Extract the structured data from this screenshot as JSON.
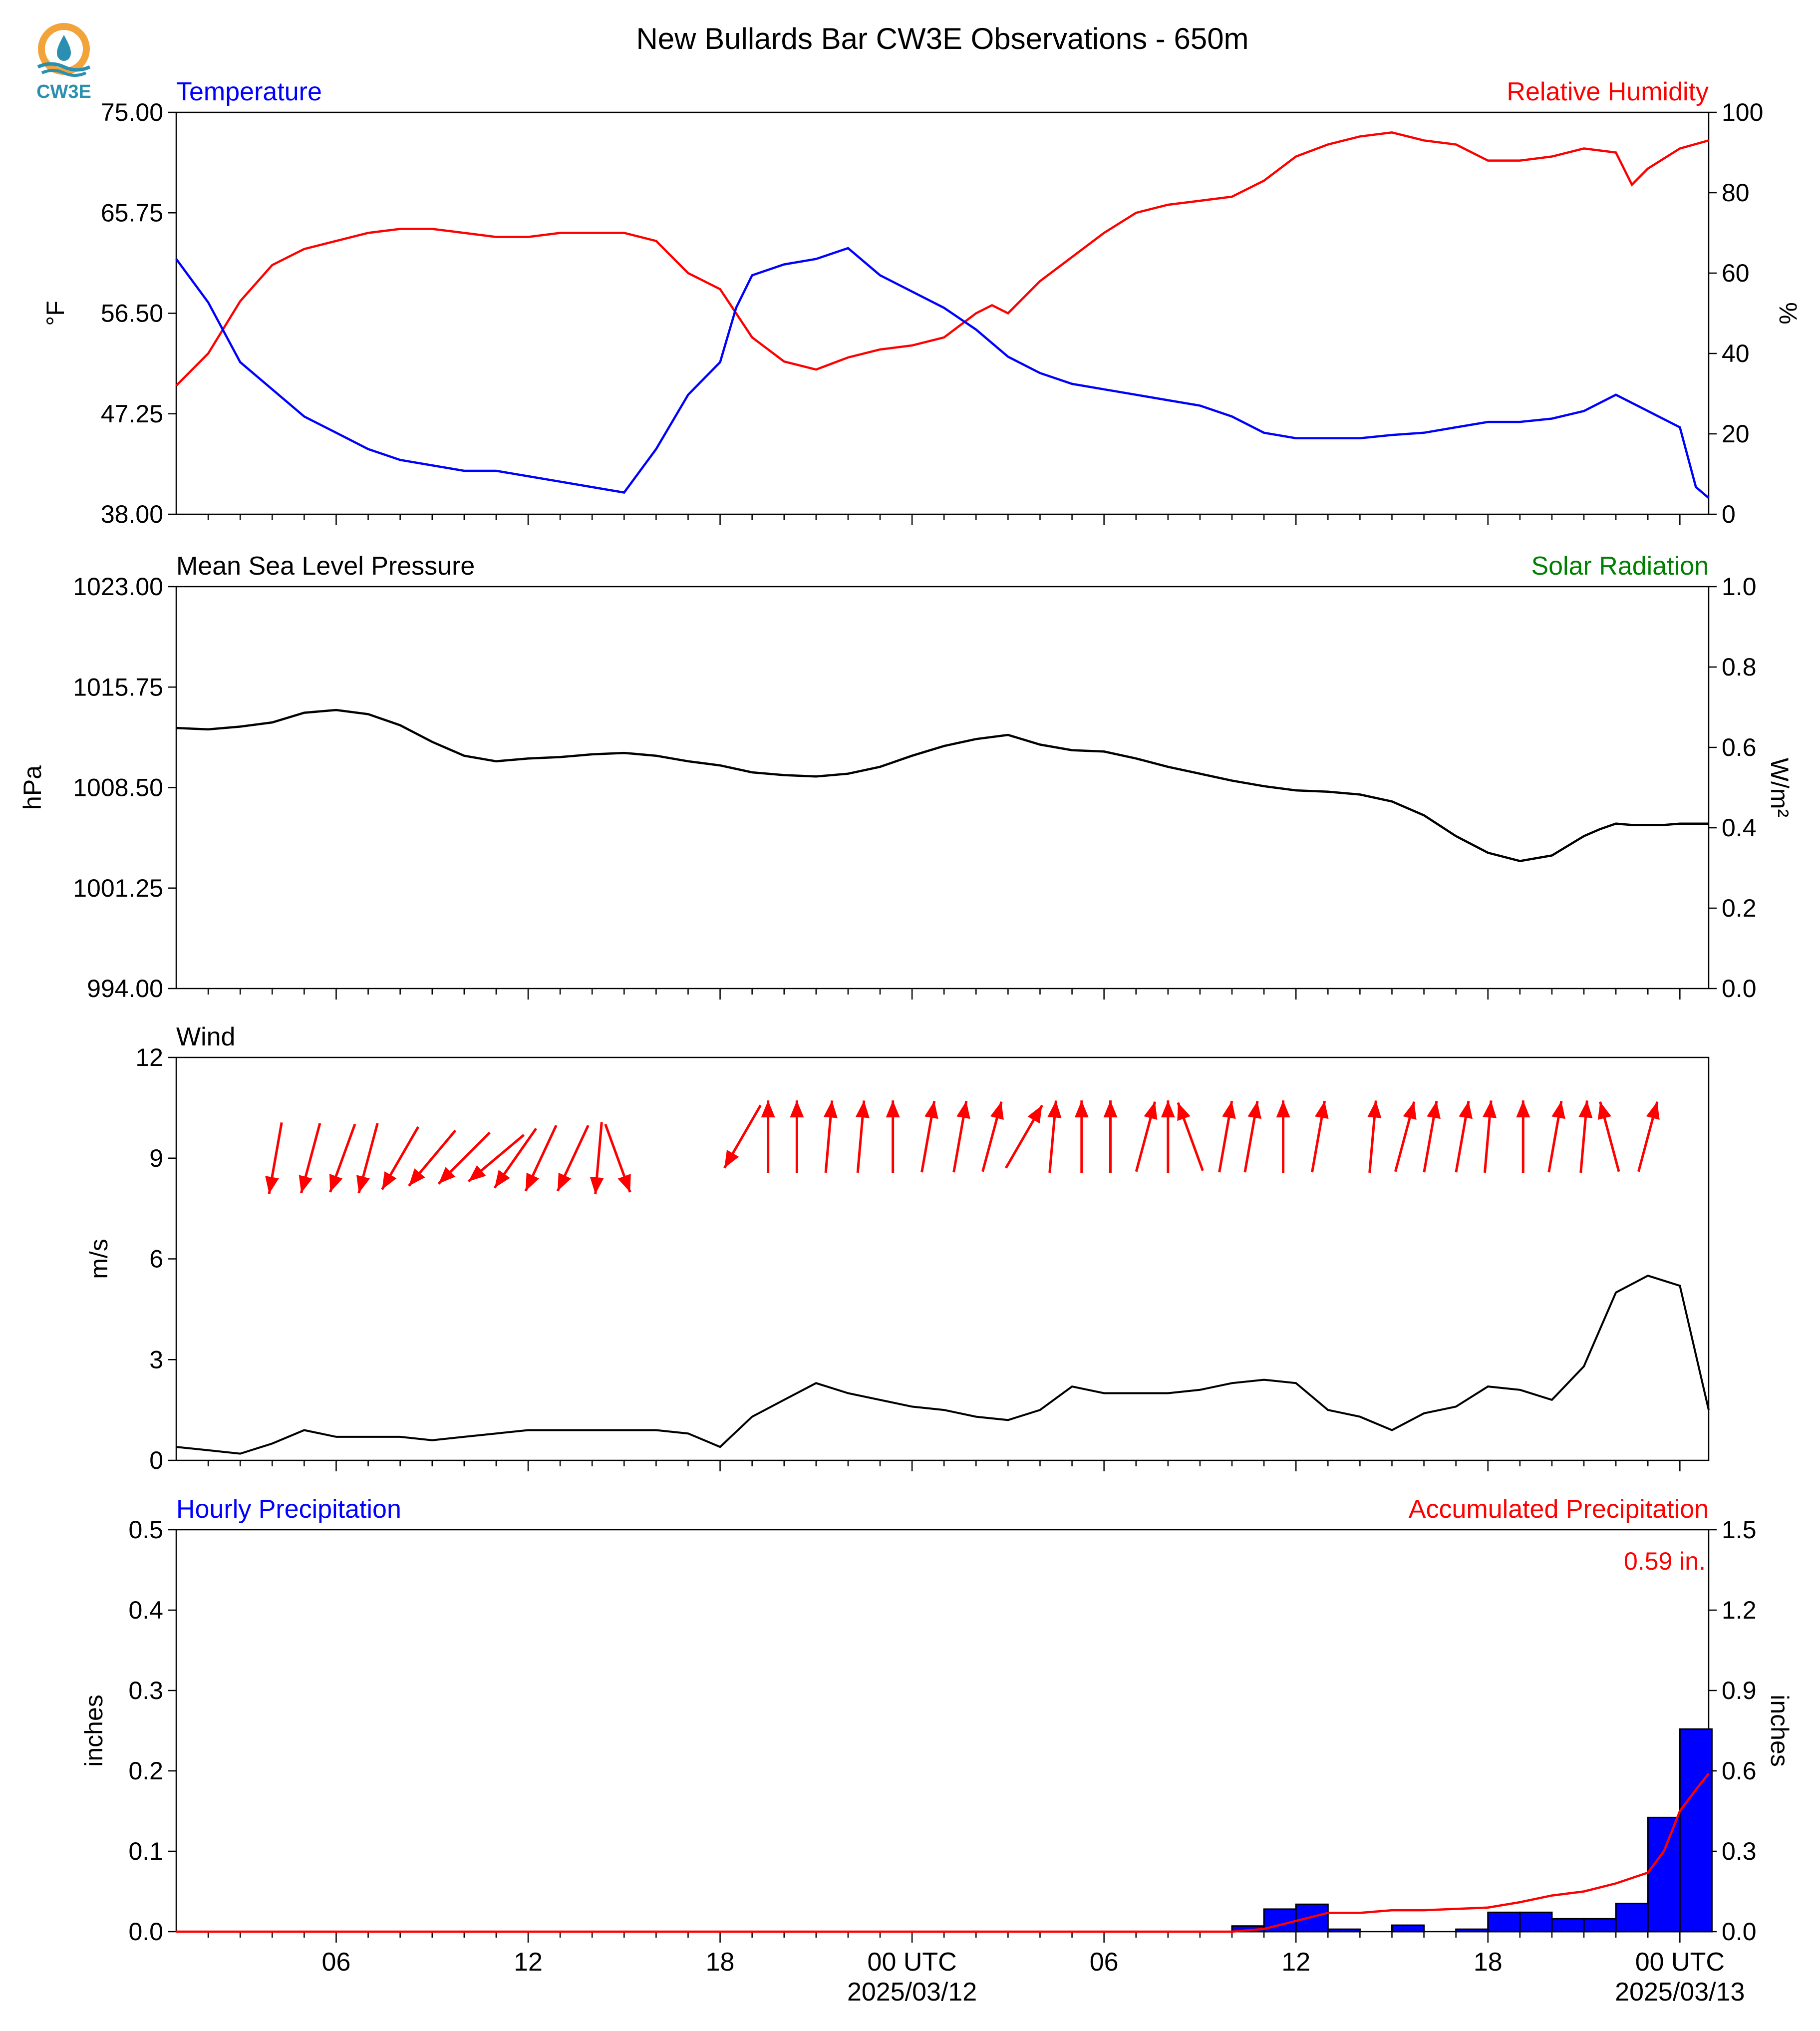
{
  "figure": {
    "title": "New Bullards Bar CW3E Observations - 650m",
    "logo_text": "CW3E"
  },
  "colors": {
    "temperature": "#0000ff",
    "humidity": "#ff0000",
    "solar": "#008000",
    "pressure": "#000000",
    "wind": "#000000",
    "wind_arrow": "#ff0000",
    "precip_bar": "#0000ff",
    "precip_accum": "#ff0000",
    "logo_orange": "#f2a33a",
    "logo_teal": "#2a8fb0"
  },
  "x_axis": {
    "start_hour": 1,
    "end_hour": 48.9,
    "major_ticks": [
      {
        "hour": 6,
        "label": "06",
        "sub": ""
      },
      {
        "hour": 12,
        "label": "12",
        "sub": ""
      },
      {
        "hour": 18,
        "label": "18",
        "sub": ""
      },
      {
        "hour": 24,
        "label": "00 UTC",
        "sub": "2025/03/12"
      },
      {
        "hour": 30,
        "label": "06",
        "sub": ""
      },
      {
        "hour": 36,
        "label": "12",
        "sub": ""
      },
      {
        "hour": 42,
        "label": "18",
        "sub": ""
      },
      {
        "hour": 48,
        "label": "00 UTC",
        "sub": "2025/03/13"
      }
    ]
  },
  "chart_data": [
    {
      "type": "line",
      "panel": "temperature_humidity",
      "left_label": "Temperature",
      "right_label": "Relative Humidity",
      "ylabel": "°F",
      "y2label": "%",
      "ylim": [
        38.0,
        75.0
      ],
      "y2lim": [
        0,
        100
      ],
      "yticks": [
        "75.00",
        "65.75",
        "56.50",
        "47.25",
        "38.00"
      ],
      "y2ticks": [
        "100",
        "80",
        "60",
        "40",
        "20",
        "0"
      ],
      "series": [
        {
          "name": "Temperature",
          "axis": "left",
          "x": [
            1,
            2,
            3,
            4,
            5,
            6,
            7,
            8,
            9,
            10,
            11,
            12,
            13,
            14,
            15,
            16,
            17,
            18,
            18.5,
            19,
            20,
            21,
            22,
            23,
            24,
            25,
            26,
            27,
            28,
            29,
            30,
            31,
            32,
            33,
            34,
            35,
            36,
            37,
            38,
            39,
            40,
            41,
            42,
            43,
            44,
            45,
            46,
            47,
            48,
            48.5,
            48.9
          ],
          "y": [
            61.5,
            57.5,
            52.0,
            49.5,
            47.0,
            45.5,
            44.0,
            43.0,
            42.5,
            42.0,
            42.0,
            41.5,
            41.0,
            40.5,
            40.0,
            44.0,
            49.0,
            52.0,
            57.0,
            60.0,
            61.0,
            61.5,
            62.5,
            60.0,
            58.5,
            57.0,
            55.0,
            52.5,
            51.0,
            50.0,
            49.5,
            49.0,
            48.5,
            48.0,
            47.0,
            45.5,
            45.0,
            45.0,
            45.0,
            45.3,
            45.5,
            46.0,
            46.5,
            46.5,
            46.8,
            47.5,
            49.0,
            47.5,
            46.0,
            40.5,
            39.5
          ]
        },
        {
          "name": "Relative Humidity",
          "axis": "right",
          "x": [
            1,
            2,
            3,
            4,
            5,
            6,
            7,
            8,
            9,
            10,
            11,
            12,
            13,
            14,
            15,
            16,
            17,
            18,
            19,
            20,
            21,
            22,
            23,
            24,
            25,
            26,
            26.5,
            27,
            28,
            29,
            30,
            31,
            32,
            33,
            34,
            35,
            36,
            37,
            38,
            39,
            40,
            41,
            42,
            43,
            44,
            45,
            46,
            46.5,
            47,
            48,
            48.9
          ],
          "y": [
            32,
            40,
            53,
            62,
            66,
            68,
            70,
            71,
            71,
            70,
            69,
            69,
            70,
            70,
            70,
            68,
            60,
            56,
            44,
            38,
            36,
            39,
            41,
            42,
            44,
            50,
            52,
            50,
            58,
            64,
            70,
            75,
            77,
            78,
            79,
            83,
            89,
            92,
            94,
            95,
            93,
            92,
            88,
            88,
            89,
            91,
            90,
            82,
            86,
            91,
            93
          ]
        }
      ]
    },
    {
      "type": "line",
      "panel": "pressure_solar",
      "left_label": "Mean Sea Level Pressure",
      "right_label": "Solar Radiation",
      "ylabel": "hPa",
      "y2label": "W/m²",
      "ylim": [
        994.0,
        1023.0
      ],
      "y2lim": [
        0.0,
        1.0
      ],
      "yticks": [
        "1023.00",
        "1015.75",
        "1008.50",
        "1001.25",
        "994.00"
      ],
      "y2ticks": [
        "1.0",
        "0.8",
        "0.6",
        "0.4",
        "0.2",
        "0.0"
      ],
      "series": [
        {
          "name": "Mean Sea Level Pressure",
          "axis": "left",
          "x": [
            1,
            2,
            3,
            4,
            5,
            6,
            7,
            8,
            9,
            10,
            11,
            12,
            13,
            14,
            15,
            16,
            17,
            18,
            19,
            20,
            21,
            22,
            23,
            24,
            25,
            26,
            27,
            28,
            29,
            30,
            31,
            32,
            33,
            34,
            35,
            36,
            37,
            38,
            39,
            40,
            41,
            42,
            43,
            44,
            45,
            45.5,
            46,
            46.5,
            47,
            47.5,
            48,
            48.5,
            48.9
          ],
          "y": [
            1012.8,
            1012.7,
            1012.9,
            1013.2,
            1013.9,
            1014.1,
            1013.8,
            1013.0,
            1011.8,
            1010.8,
            1010.4,
            1010.6,
            1010.7,
            1010.9,
            1011.0,
            1010.8,
            1010.4,
            1010.1,
            1009.6,
            1009.4,
            1009.3,
            1009.5,
            1010.0,
            1010.8,
            1011.5,
            1012.0,
            1012.3,
            1011.6,
            1011.2,
            1011.1,
            1010.6,
            1010.0,
            1009.5,
            1009.0,
            1008.6,
            1008.3,
            1008.2,
            1008.0,
            1007.5,
            1006.5,
            1005.0,
            1003.8,
            1003.2,
            1003.6,
            1005.0,
            1005.5,
            1005.9,
            1005.8,
            1005.8,
            1005.8,
            1005.9,
            1005.9,
            1005.9
          ]
        },
        {
          "name": "Solar Radiation",
          "axis": "right",
          "x": [],
          "y": []
        }
      ]
    },
    {
      "type": "line",
      "panel": "wind",
      "left_label": "Wind",
      "ylabel": "m/s",
      "ylim": [
        0,
        12
      ],
      "yticks": [
        "12",
        "9",
        "6",
        "3",
        "0"
      ],
      "series": [
        {
          "name": "Wind",
          "x": [
            1,
            2,
            3,
            4,
            5,
            6,
            7,
            8,
            9,
            10,
            11,
            12,
            13,
            14,
            15,
            16,
            17,
            18,
            19,
            20,
            21,
            22,
            23,
            24,
            25,
            26,
            27,
            28,
            29,
            30,
            31,
            32,
            33,
            34,
            35,
            36,
            37,
            38,
            39,
            40,
            41,
            42,
            43,
            44,
            45,
            46,
            47,
            48,
            48.9
          ],
          "y": [
            0.4,
            0.3,
            0.2,
            0.5,
            0.9,
            0.7,
            0.7,
            0.7,
            0.6,
            0.7,
            0.8,
            0.9,
            0.9,
            0.9,
            0.9,
            0.9,
            0.8,
            0.4,
            1.3,
            1.8,
            2.3,
            2.0,
            1.8,
            1.6,
            1.5,
            1.3,
            1.2,
            1.5,
            2.2,
            2.0,
            2.0,
            2.0,
            2.1,
            2.3,
            2.4,
            2.3,
            1.5,
            1.3,
            0.9,
            1.4,
            1.6,
            2.2,
            2.1,
            1.8,
            2.8,
            5.0,
            5.5,
            5.2,
            1.5
          ]
        }
      ],
      "wind_barbs_label": "wind direction arrows",
      "arrows": [
        {
          "hour": 4.1,
          "dir": 10,
          "y": 9.0
        },
        {
          "hour": 5.2,
          "dir": 15,
          "y": 9.0
        },
        {
          "hour": 6.2,
          "dir": 20,
          "y": 9.0
        },
        {
          "hour": 7.0,
          "dir": 15,
          "y": 9.0
        },
        {
          "hour": 8.0,
          "dir": 30,
          "y": 9.0
        },
        {
          "hour": 9.0,
          "dir": 40,
          "y": 9.0
        },
        {
          "hour": 10.0,
          "dir": 45,
          "y": 9.0
        },
        {
          "hour": 11.0,
          "dir": 50,
          "y": 9.0
        },
        {
          "hour": 11.6,
          "dir": 35,
          "y": 9.0
        },
        {
          "hour": 12.4,
          "dir": 25,
          "y": 9.0
        },
        {
          "hour": 13.4,
          "dir": 25,
          "y": 9.0
        },
        {
          "hour": 14.2,
          "dir": 5,
          "y": 9.0
        },
        {
          "hour": 14.8,
          "dir": 340,
          "y": 9.0
        },
        {
          "hour": 18.7,
          "dir": 30,
          "y": 11.5
        },
        {
          "hour": 19.5,
          "dir": 180,
          "y": 11.5
        },
        {
          "hour": 20.4,
          "dir": 180,
          "y": 11.5
        },
        {
          "hour": 21.4,
          "dir": 185,
          "y": 11.5
        },
        {
          "hour": 22.4,
          "dir": 185,
          "y": 11.5
        },
        {
          "hour": 23.4,
          "dir": 180,
          "y": 11.5
        },
        {
          "hour": 24.5,
          "dir": 190,
          "y": 11.5
        },
        {
          "hour": 25.5,
          "dir": 190,
          "y": 11.5
        },
        {
          "hour": 26.5,
          "dir": 195,
          "y": 11.5
        },
        {
          "hour": 27.5,
          "dir": 210,
          "y": 11.5
        },
        {
          "hour": 28.4,
          "dir": 185,
          "y": 11.5
        },
        {
          "hour": 29.3,
          "dir": 180,
          "y": 11.5
        },
        {
          "hour": 30.2,
          "dir": 180,
          "y": 11.5
        },
        {
          "hour": 31.3,
          "dir": 195,
          "y": 11.5
        },
        {
          "hour": 32.0,
          "dir": 180,
          "y": 11.5
        },
        {
          "hour": 32.7,
          "dir": 160,
          "y": 11.5
        },
        {
          "hour": 33.8,
          "dir": 190,
          "y": 11.5
        },
        {
          "hour": 34.6,
          "dir": 190,
          "y": 11.5
        },
        {
          "hour": 35.6,
          "dir": 180,
          "y": 11.5
        },
        {
          "hour": 36.7,
          "dir": 190,
          "y": 11.5
        },
        {
          "hour": 38.4,
          "dir": 185,
          "y": 11.5
        },
        {
          "hour": 39.4,
          "dir": 195,
          "y": 11.5
        },
        {
          "hour": 40.2,
          "dir": 190,
          "y": 11.5
        },
        {
          "hour": 41.2,
          "dir": 190,
          "y": 11.5
        },
        {
          "hour": 42.0,
          "dir": 185,
          "y": 11.5
        },
        {
          "hour": 43.1,
          "dir": 180,
          "y": 11.5
        },
        {
          "hour": 44.1,
          "dir": 190,
          "y": 11.5
        },
        {
          "hour": 45.0,
          "dir": 185,
          "y": 11.5
        },
        {
          "hour": 45.8,
          "dir": 165,
          "y": 11.5
        },
        {
          "hour": 47.0,
          "dir": 195,
          "y": 11.5
        }
      ]
    },
    {
      "type": "bar",
      "panel": "precipitation",
      "left_label": "Hourly Precipitation",
      "right_label": "Accumulated Precipitation",
      "accum_annotation": "0.59 in.",
      "ylabel": "inches",
      "y2label": "inches",
      "ylim": [
        0.0,
        0.5
      ],
      "y2lim": [
        0.0,
        1.5
      ],
      "yticks": [
        "0.5",
        "0.4",
        "0.3",
        "0.2",
        "0.1",
        "0.0"
      ],
      "y2ticks": [
        "1.5",
        "1.2",
        "0.9",
        "0.6",
        "0.3",
        "0.0"
      ],
      "bars": {
        "hour_start": [
          34,
          35,
          36,
          37,
          39,
          41,
          42,
          43,
          44,
          45,
          46,
          47,
          48
        ],
        "values": [
          0.007,
          0.028,
          0.034,
          0.003,
          0.008,
          0.003,
          0.024,
          0.024,
          0.016,
          0.016,
          0.035,
          0.142,
          0.252
        ]
      },
      "accumulated": {
        "x": [
          1,
          34,
          35,
          36,
          37,
          38,
          39,
          40,
          41,
          42,
          43,
          44,
          45,
          46,
          47,
          47.5,
          48,
          48.5,
          48.9
        ],
        "y": [
          0,
          0,
          0.01,
          0.04,
          0.07,
          0.07,
          0.08,
          0.08,
          0.085,
          0.09,
          0.11,
          0.135,
          0.15,
          0.18,
          0.22,
          0.3,
          0.45,
          0.53,
          0.59
        ]
      }
    }
  ]
}
